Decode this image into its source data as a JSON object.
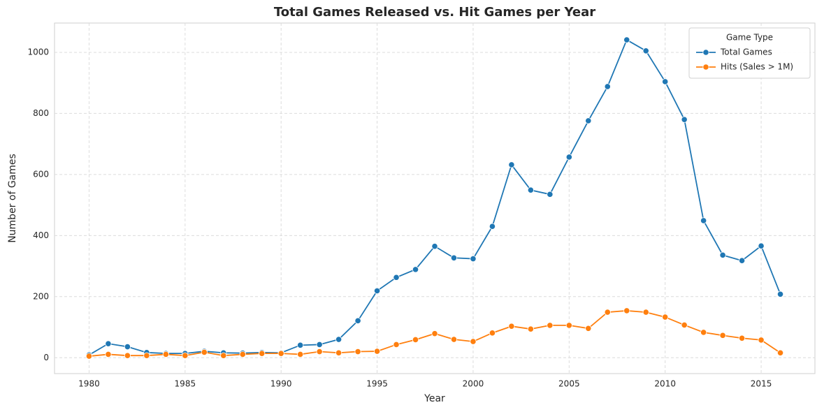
{
  "chart_data": {
    "type": "line",
    "title": "Total Games Released vs. Hit Games per Year",
    "x_label": "Year",
    "y_label": "Number of Games",
    "x": [
      1980,
      1981,
      1982,
      1983,
      1984,
      1985,
      1986,
      1987,
      1988,
      1989,
      1990,
      1991,
      1992,
      1993,
      1994,
      1995,
      1996,
      1997,
      1998,
      1999,
      2000,
      2001,
      2002,
      2003,
      2004,
      2005,
      2006,
      2007,
      2008,
      2009,
      2010,
      2011,
      2012,
      2013,
      2014,
      2015,
      2016
    ],
    "series": [
      {
        "name": "Total Games",
        "color": "#1f77b4",
        "values": [
          9,
          46,
          36,
          17,
          14,
          14,
          21,
          16,
          15,
          17,
          16,
          41,
          43,
          60,
          121,
          219,
          263,
          289,
          365,
          327,
          324,
          430,
          632,
          549,
          535,
          657,
          776,
          888,
          1041,
          1005,
          904,
          780,
          449,
          336,
          318,
          366,
          208
        ]
      },
      {
        "name": "Hits (Sales > 1M)",
        "color": "#ff7f0e",
        "values": [
          5,
          11,
          7,
          7,
          11,
          7,
          18,
          7,
          11,
          14,
          14,
          11,
          20,
          16,
          20,
          21,
          43,
          59,
          79,
          60,
          53,
          81,
          103,
          94,
          106,
          106,
          96,
          149,
          154,
          149,
          133,
          107,
          83,
          73,
          64,
          58,
          16
        ]
      }
    ],
    "legend_title": "Game Type",
    "legend": "upper right",
    "xlim": [
      1978.2,
      2017.8
    ],
    "ylim": [
      -52,
      1096
    ],
    "xticks": [
      1980,
      1985,
      1990,
      1995,
      2000,
      2005,
      2010,
      2015
    ],
    "yticks": [
      0,
      200,
      400,
      600,
      800,
      1000
    ],
    "grid": true
  }
}
